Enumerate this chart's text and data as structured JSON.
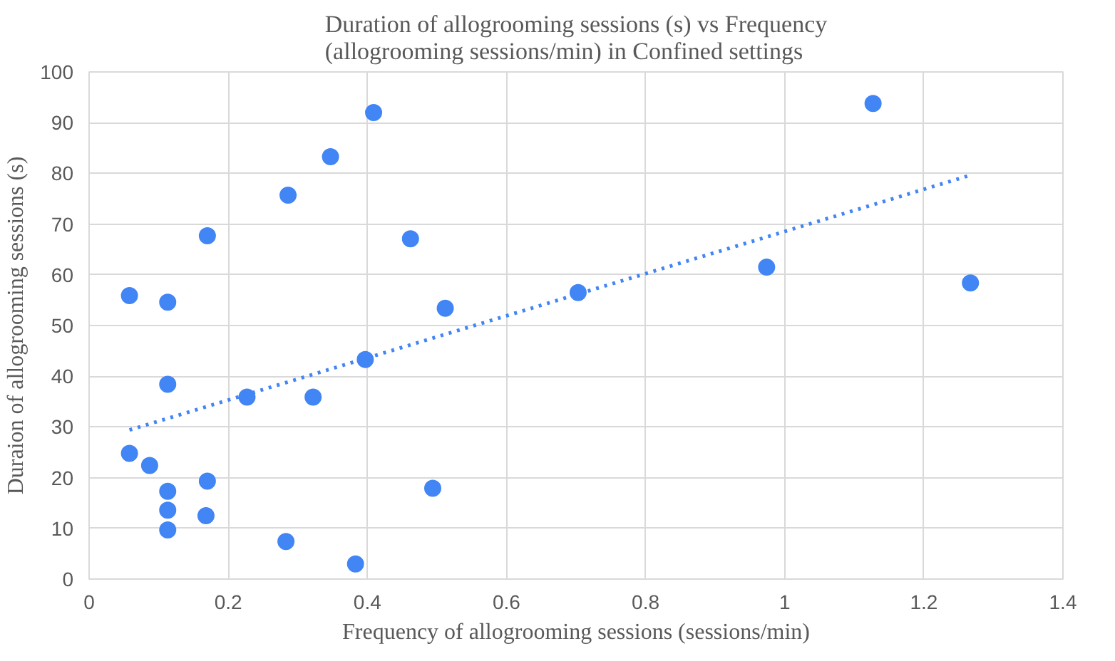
{
  "chart_data": {
    "type": "scatter",
    "title": "Duration of allogrooming sessions (s) vs Frequency\n(allogrooming sessions/min) in Confined settings",
    "xlabel": "Frequency of allogrooming sessions (sessions/min)",
    "ylabel": "Duraion of allogrooming sessions (s)",
    "xlim": [
      0,
      1.4
    ],
    "ylim": [
      0,
      100
    ],
    "xticks": [
      0,
      0.2,
      0.4,
      0.6,
      0.8,
      1,
      1.2,
      1.4
    ],
    "yticks": [
      0,
      10,
      20,
      30,
      40,
      50,
      60,
      70,
      80,
      90,
      100
    ],
    "grid": true,
    "series": [
      {
        "color": "#4285f4",
        "marker": "circle",
        "x": [
          0.058,
          0.113,
          0.17,
          0.286,
          0.347,
          0.409,
          0.462,
          0.512,
          0.397,
          0.113,
          0.227,
          0.322,
          0.058,
          0.087,
          0.113,
          0.113,
          0.113,
          0.17,
          0.168,
          0.283,
          0.383,
          0.494,
          0.703,
          0.974,
          1.127,
          1.267
        ],
        "values": [
          55.9,
          54.6,
          67.7,
          75.7,
          83.3,
          92.0,
          67.1,
          53.4,
          43.3,
          38.4,
          35.9,
          35.9,
          24.8,
          22.4,
          17.3,
          13.6,
          9.7,
          19.3,
          12.5,
          7.4,
          3.0,
          17.9,
          56.5,
          61.5,
          93.8,
          58.4
        ]
      },
      {
        "type": "line",
        "color": "#4285f4",
        "line_style": "dotted",
        "x": [
          0.058,
          1.266
        ],
        "values": [
          29.4,
          79.6
        ]
      }
    ]
  }
}
